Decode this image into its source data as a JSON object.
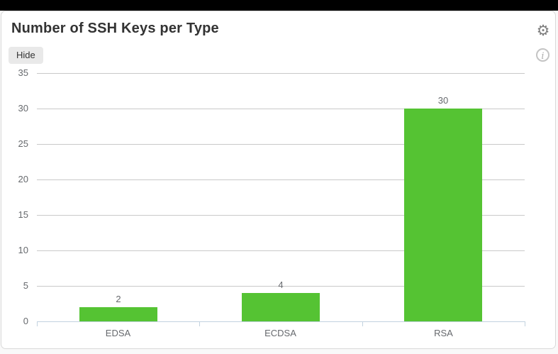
{
  "topbar": {},
  "panel": {
    "title": "Number of SSH Keys per Type",
    "hide_button_label": "Hide",
    "settings_icon_glyph": "⚙",
    "info_icon_glyph": "i"
  },
  "chart_data": {
    "type": "bar",
    "title": "Number of SSH Keys per Type",
    "categories": [
      "EDSA",
      "ECDSA",
      "RSA"
    ],
    "values": [
      2,
      4,
      30
    ],
    "value_labels": [
      "2",
      "4",
      "30"
    ],
    "xlabel": "",
    "ylabel": "",
    "ylim": [
      0,
      35
    ],
    "yticks": [
      0,
      5,
      10,
      15,
      20,
      25,
      30,
      35
    ],
    "grid": true,
    "legend": false,
    "colors": {
      "bar": "#55c333",
      "gridline": "#c9c9c9",
      "axis": "#c2d2df",
      "tick_label": "#66696d",
      "value_label": "#66696d"
    }
  }
}
